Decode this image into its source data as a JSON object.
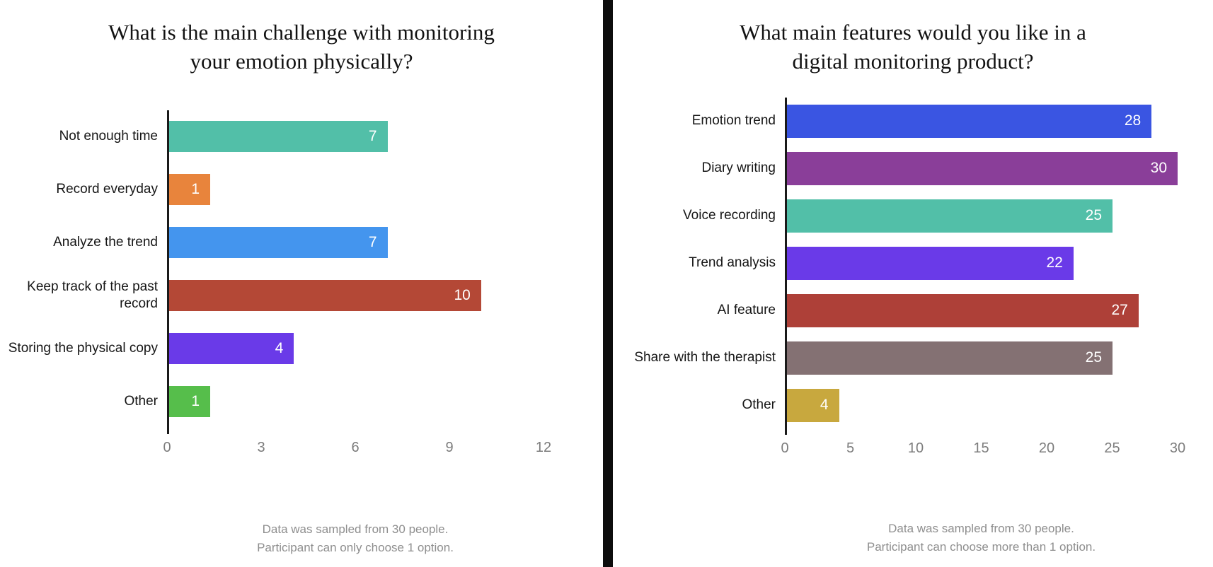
{
  "page": {
    "background": "#ffffff",
    "divider_color": "#0d0d0d"
  },
  "styles": {
    "axis_color": "#1a1a1a",
    "tick_color": "#7c7c7c",
    "footnote_color": "#8e8e8e",
    "label_color": "#161616",
    "value_color": "#ffffff",
    "title_color": "#121212"
  },
  "chart_data": [
    {
      "type": "bar",
      "orientation": "horizontal",
      "title": "What is the main challenge with monitoring your emotion physically?",
      "title_lines": [
        "What is the main challenge with monitoring",
        "your emotion physically?"
      ],
      "categories": [
        "Not enough time",
        "Record everyday",
        "Analyze the trend",
        "Keep track of the past record",
        "Storing the physical copy",
        "Other"
      ],
      "values": [
        7,
        1,
        7,
        10,
        4,
        1
      ],
      "bar_colors": [
        "#52BFA8",
        "#E8843C",
        "#4495EE",
        "#B44836",
        "#6A3AE8",
        "#56BE4B"
      ],
      "xlim": [
        0,
        12
      ],
      "xticks": [
        "0",
        "3",
        "6",
        "9",
        "12"
      ],
      "grid": "off",
      "legend": "none",
      "footnote_lines": [
        "Data was sampled from 30 people.",
        "Participant can only choose 1 option."
      ]
    },
    {
      "type": "bar",
      "orientation": "horizontal",
      "title": "What main features would you like in a digital monitoring product?",
      "title_lines": [
        "What main features would you like in a",
        "digital monitoring product?"
      ],
      "categories": [
        "Emotion trend",
        "Diary writing",
        "Voice recording",
        "Trend analysis",
        "AI feature",
        "Share with the therapist",
        "Other"
      ],
      "values": [
        28,
        30,
        25,
        22,
        27,
        25,
        4
      ],
      "bar_colors": [
        "#3A55E2",
        "#8A3E99",
        "#52BFA8",
        "#6A3AE8",
        "#AE4038",
        "#847173",
        "#C8A83E"
      ],
      "xlim": [
        0,
        30
      ],
      "xticks": [
        "0",
        "5",
        "10",
        "15",
        "20",
        "25",
        "30"
      ],
      "grid": "off",
      "legend": "none",
      "footnote_lines": [
        "Data was sampled from 30 people.",
        "Participant can choose more than 1 option."
      ]
    }
  ]
}
